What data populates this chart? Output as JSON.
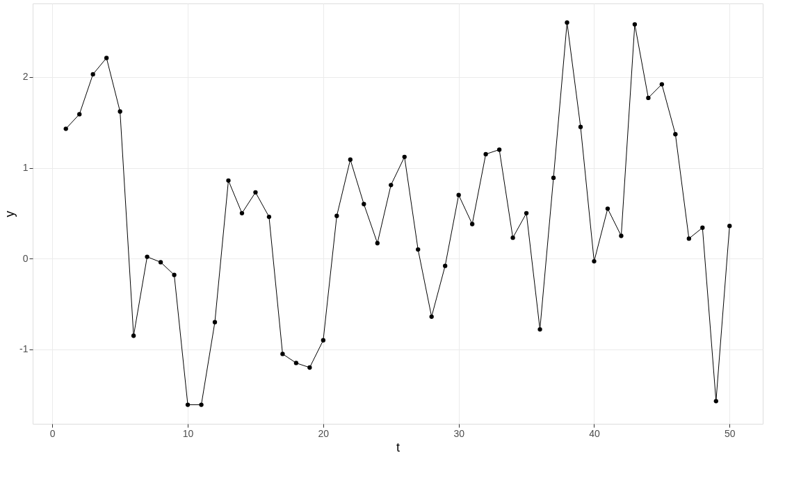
{
  "chart_data": {
    "type": "line",
    "xlabel": "t",
    "ylabel": "y",
    "marker": "circle",
    "line_style": "solid",
    "grid": true,
    "legend": false,
    "x": [
      1,
      2,
      3,
      4,
      5,
      6,
      7,
      8,
      9,
      10,
      11,
      12,
      13,
      14,
      15,
      16,
      17,
      18,
      19,
      20,
      21,
      22,
      23,
      24,
      25,
      26,
      27,
      28,
      29,
      30,
      31,
      32,
      33,
      34,
      35,
      36,
      37,
      38,
      39,
      40,
      41,
      42,
      43,
      44,
      45,
      46,
      47,
      48,
      49,
      50
    ],
    "series": [
      {
        "color": "#000000",
        "values": [
          1.43,
          1.59,
          2.03,
          2.21,
          1.62,
          -0.85,
          0.02,
          -0.04,
          -0.18,
          -1.61,
          -1.61,
          -0.7,
          0.86,
          0.5,
          0.73,
          0.46,
          -1.05,
          -1.15,
          -1.2,
          -0.9,
          0.47,
          1.09,
          0.6,
          0.17,
          0.81,
          1.12,
          0.1,
          -0.64,
          -0.08,
          0.7,
          0.38,
          1.15,
          1.2,
          0.23,
          0.5,
          -0.78,
          0.89,
          2.6,
          1.45,
          -0.03,
          0.55,
          0.25,
          2.58,
          1.77,
          1.92,
          1.37,
          0.22,
          0.34,
          -1.57,
          0.36
        ]
      }
    ],
    "xlim": [
      -1.45,
      52.45
    ],
    "ylim": [
      -1.82,
      2.81
    ],
    "xticks": [
      0,
      10,
      20,
      30,
      40,
      50
    ],
    "yticks": [
      -1,
      0,
      1,
      2
    ]
  }
}
